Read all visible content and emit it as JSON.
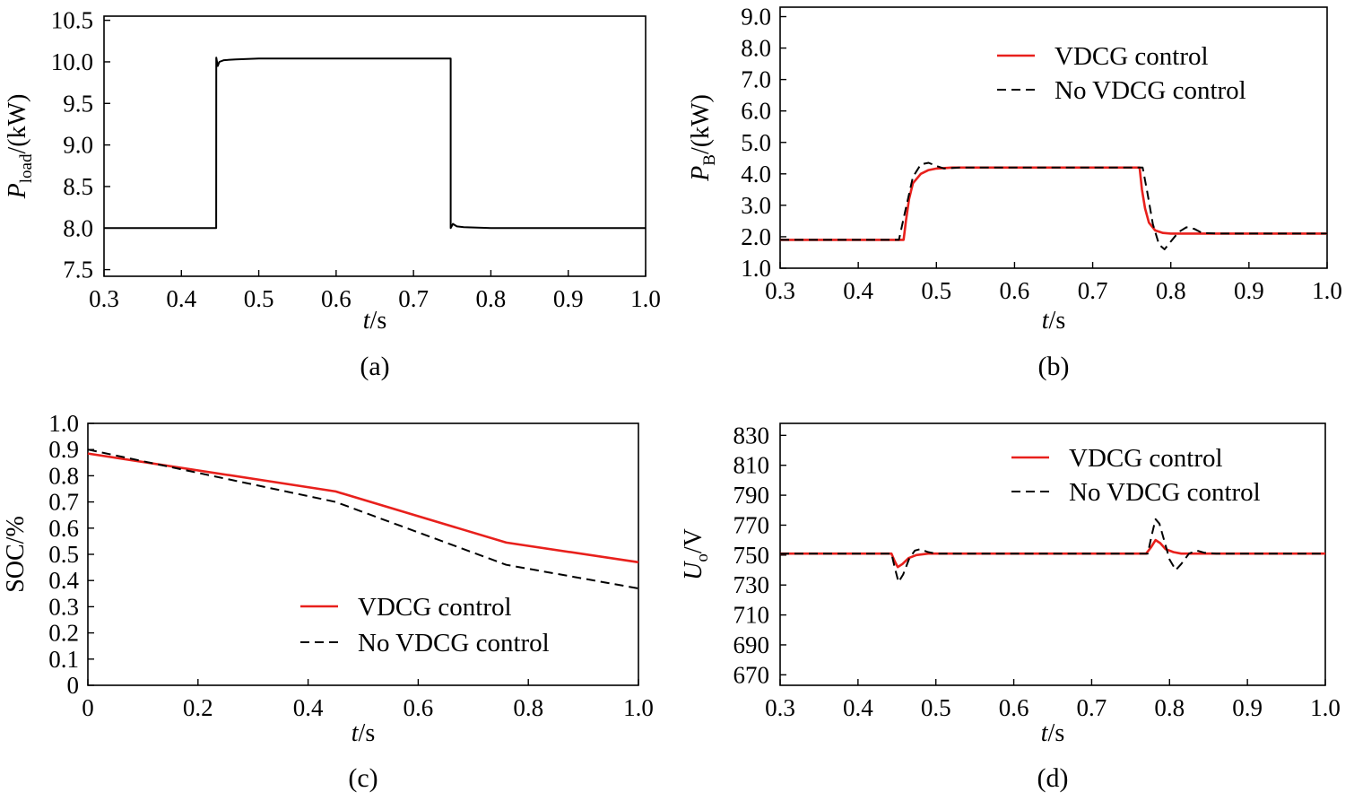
{
  "figure": {
    "caption_a": "(a)",
    "caption_b": "(b)",
    "caption_c": "(c)",
    "caption_d": "(d)"
  },
  "colors": {
    "vdcg": "#e8201c",
    "no_vdcg": "#000000",
    "axis": "#000000"
  },
  "chart_data": [
    {
      "id": "a",
      "type": "line",
      "caption": "(a)",
      "xlabel_italic": "t",
      "xlabel_unit": "/s",
      "ylabel_main": "P",
      "ylabel_sub": "load",
      "ylabel_unit": "/(kW)",
      "xlim": [
        0.3,
        1.0
      ],
      "ylim": [
        7.42,
        10.55
      ],
      "xticks": [
        "0.3",
        "0.4",
        "0.5",
        "0.6",
        "0.7",
        "0.8",
        "0.9",
        "1.0"
      ],
      "yticks": [
        "7.5",
        "8.0",
        "8.5",
        "9.0",
        "9.5",
        "10.0",
        "10.5"
      ],
      "series": [
        {
          "name": "P_load",
          "style": "solid",
          "x": [
            0.3,
            0.445,
            0.4451,
            0.447,
            0.449,
            0.455,
            0.47,
            0.5,
            0.55,
            0.6,
            0.7,
            0.748,
            0.7481,
            0.751,
            0.756,
            0.765,
            0.8,
            0.9,
            1.0
          ],
          "y": [
            8.0,
            8.0,
            10.05,
            9.95,
            10.0,
            10.02,
            10.03,
            10.04,
            10.04,
            10.04,
            10.04,
            10.04,
            8.0,
            8.05,
            8.02,
            8.01,
            8.0,
            8.0,
            8.0
          ]
        }
      ]
    },
    {
      "id": "b",
      "type": "line",
      "caption": "(b)",
      "xlabel_italic": "t",
      "xlabel_unit": "/s",
      "ylabel_main": "P",
      "ylabel_sub": "B",
      "ylabel_unit": "/(kW)",
      "xlim": [
        0.3,
        1.0
      ],
      "ylim": [
        1.0,
        9.3
      ],
      "xticks": [
        "0.3",
        "0.4",
        "0.5",
        "0.6",
        "0.7",
        "0.8",
        "0.9",
        "1.0"
      ],
      "yticks": [
        "1.0",
        "2.0",
        "3.0",
        "4.0",
        "5.0",
        "6.0",
        "7.0",
        "8.0",
        "9.0"
      ],
      "legend": [
        "VDCG control",
        "No VDCG control"
      ],
      "series": [
        {
          "name": "VDCG control",
          "style": "solid",
          "x": [
            0.3,
            0.458,
            0.461,
            0.465,
            0.47,
            0.48,
            0.49,
            0.5,
            0.52,
            0.55,
            0.6,
            0.76,
            0.763,
            0.767,
            0.772,
            0.78,
            0.79,
            0.8,
            0.83,
            1.0
          ],
          "y": [
            1.9,
            1.9,
            2.5,
            3.2,
            3.7,
            4.0,
            4.12,
            4.17,
            4.2,
            4.2,
            4.2,
            4.2,
            3.5,
            2.9,
            2.45,
            2.2,
            2.12,
            2.1,
            2.1,
            2.1
          ]
        },
        {
          "name": "No VDCG control",
          "style": "dashed",
          "x": [
            0.3,
            0.452,
            0.46,
            0.47,
            0.48,
            0.49,
            0.5,
            0.51,
            0.53,
            0.55,
            0.6,
            0.764,
            0.77,
            0.777,
            0.785,
            0.792,
            0.8,
            0.81,
            0.82,
            0.83,
            0.84,
            0.86,
            1.0
          ],
          "y": [
            1.9,
            1.9,
            2.8,
            3.9,
            4.3,
            4.35,
            4.25,
            4.17,
            4.2,
            4.2,
            4.2,
            4.2,
            3.4,
            2.4,
            1.75,
            1.6,
            1.85,
            2.15,
            2.3,
            2.25,
            2.12,
            2.1,
            2.1
          ]
        }
      ]
    },
    {
      "id": "c",
      "type": "line",
      "caption": "(c)",
      "xlabel_italic": "t",
      "xlabel_unit": "/s",
      "ylabel_text": "SOC/%",
      "xlim": [
        0.0,
        1.0
      ],
      "ylim": [
        0.0,
        1.0
      ],
      "xticks_values": [
        0,
        0.2,
        0.4,
        0.6,
        0.8,
        1.0
      ],
      "xticks": [
        "0",
        "0.2",
        "0.4",
        "0.6",
        "0.8",
        "1.0"
      ],
      "yticks_values": [
        0,
        0.1,
        0.2,
        0.3,
        0.4,
        0.5,
        0.6,
        0.7,
        0.8,
        0.9,
        1.0
      ],
      "yticks": [
        "0",
        "0.1",
        "0.2",
        "0.3",
        "0.4",
        "0.5",
        "0.6",
        "0.7",
        "0.8",
        "0.9",
        "1.0"
      ],
      "legend": [
        "VDCG control",
        "No VDCG control"
      ],
      "series": [
        {
          "name": "VDCG control",
          "style": "solid",
          "x": [
            0.0,
            0.45,
            0.76,
            1.0
          ],
          "y": [
            0.885,
            0.74,
            0.545,
            0.47
          ]
        },
        {
          "name": "No VDCG control",
          "style": "dashed",
          "x": [
            0.0,
            0.45,
            0.76,
            1.0
          ],
          "y": [
            0.9,
            0.7,
            0.46,
            0.37
          ]
        }
      ]
    },
    {
      "id": "d",
      "type": "line",
      "caption": "(d)",
      "xlabel_italic": "t",
      "xlabel_unit": "/s",
      "ylabel_main": "U",
      "ylabel_sub": "o",
      "ylabel_unit": "/V",
      "xlim": [
        0.3,
        1.0
      ],
      "ylim": [
        663,
        838
      ],
      "xticks": [
        "0.3",
        "0.4",
        "0.5",
        "0.6",
        "0.7",
        "0.8",
        "0.9",
        "1.0"
      ],
      "yticks": [
        "670",
        "690",
        "710",
        "730",
        "750",
        "770",
        "790",
        "810",
        "830"
      ],
      "legend": [
        "VDCG control",
        "No VDCG control"
      ],
      "series": [
        {
          "name": "VDCG control",
          "style": "solid",
          "x": [
            0.3,
            0.443,
            0.447,
            0.451,
            0.457,
            0.465,
            0.475,
            0.49,
            0.5,
            0.6,
            0.77,
            0.776,
            0.782,
            0.788,
            0.795,
            0.805,
            0.815,
            0.83,
            1.0
          ],
          "y": [
            751,
            751,
            746,
            742,
            744,
            748,
            750,
            751,
            751,
            751,
            751,
            755,
            760,
            758,
            754,
            752,
            751,
            751,
            751
          ]
        },
        {
          "name": "No VDCG control",
          "style": "dashed",
          "x": [
            0.3,
            0.443,
            0.447,
            0.452,
            0.458,
            0.466,
            0.473,
            0.48,
            0.49,
            0.5,
            0.6,
            0.772,
            0.777,
            0.782,
            0.787,
            0.793,
            0.8,
            0.808,
            0.815,
            0.825,
            0.835,
            0.845,
            0.86,
            1.0
          ],
          "y": [
            751,
            751,
            742,
            732,
            737,
            748,
            753,
            754,
            752,
            751,
            751,
            751,
            763,
            774,
            771,
            760,
            747,
            740,
            744,
            751,
            753,
            751.5,
            751,
            751
          ]
        }
      ]
    }
  ]
}
